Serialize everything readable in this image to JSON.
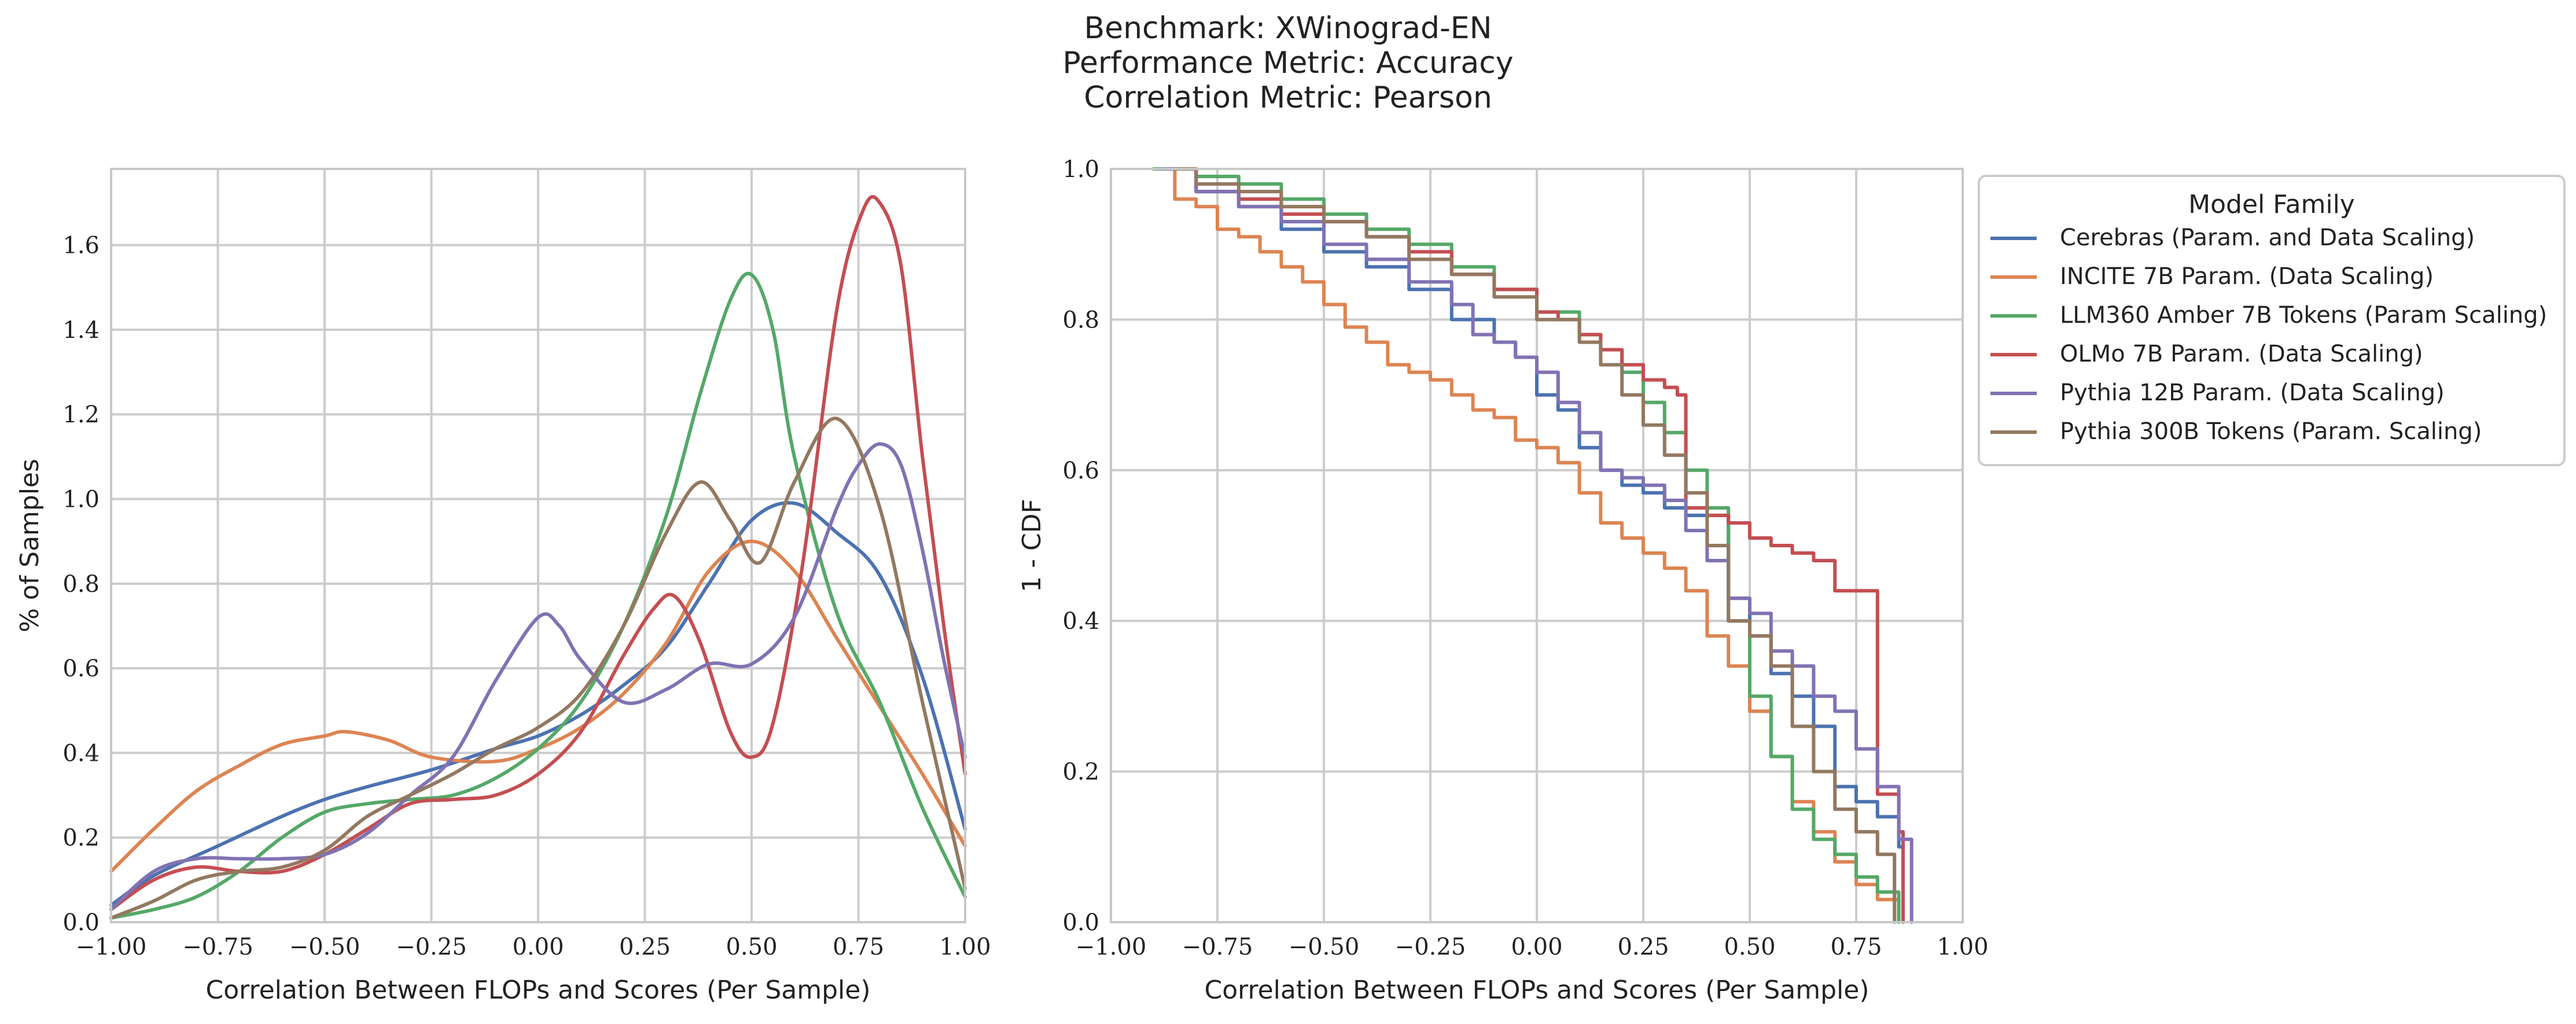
{
  "title": {
    "line1": "Benchmark: XWinograd-EN",
    "line2": "Performance Metric: Accuracy",
    "line3": "Correlation Metric: Pearson"
  },
  "colors": {
    "Cerebras": "#4c72b0",
    "INCITE": "#dd8452",
    "LLM360": "#55a868",
    "OLMo": "#c44e52",
    "Pythia12B": "#8172b3",
    "Pythia300B": "#937860"
  },
  "legend": {
    "title": "Model Family",
    "entries": [
      "Cerebras (Param. and Data Scaling)",
      "INCITE 7B Param. (Data Scaling)",
      "LLM360 Amber 7B Tokens (Param Scaling)",
      "OLMo 7B Param. (Data Scaling)",
      "Pythia 12B Param. (Data Scaling)",
      "Pythia 300B Tokens (Param. Scaling)"
    ]
  },
  "chart_data": [
    {
      "type": "line",
      "xlabel": "Correlation Between FLOPs and Scores (Per Sample)",
      "ylabel": "% of Samples",
      "xlim": [
        -1.0,
        1.0
      ],
      "ylim": [
        0.0,
        1.78
      ],
      "xticks": [
        "−1.00",
        "−0.75",
        "−0.50",
        "−0.25",
        "0.00",
        "0.25",
        "0.50",
        "0.75",
        "1.00"
      ],
      "yticks": [
        "0.0",
        "0.2",
        "0.4",
        "0.6",
        "0.8",
        "1.0",
        "1.2",
        "1.4",
        "1.6"
      ],
      "grid": true,
      "series": [
        {
          "name": "Cerebras (Param. and Data Scaling)",
          "color_key": "Cerebras",
          "x": [
            -1.0,
            -0.9,
            -0.75,
            -0.6,
            -0.5,
            -0.4,
            -0.25,
            -0.1,
            0.0,
            0.1,
            0.2,
            0.3,
            0.4,
            0.5,
            0.6,
            0.7,
            0.8,
            0.9,
            1.0
          ],
          "y": [
            0.04,
            0.11,
            0.18,
            0.25,
            0.29,
            0.32,
            0.36,
            0.41,
            0.44,
            0.49,
            0.56,
            0.65,
            0.8,
            0.95,
            0.99,
            0.92,
            0.82,
            0.58,
            0.22
          ]
        },
        {
          "name": "INCITE 7B Param. (Data Scaling)",
          "color_key": "INCITE",
          "x": [
            -1.0,
            -0.9,
            -0.8,
            -0.7,
            -0.6,
            -0.5,
            -0.45,
            -0.35,
            -0.25,
            -0.1,
            0.0,
            0.1,
            0.2,
            0.3,
            0.4,
            0.5,
            0.6,
            0.7,
            0.8,
            0.9,
            1.0
          ],
          "y": [
            0.12,
            0.22,
            0.31,
            0.37,
            0.42,
            0.44,
            0.45,
            0.43,
            0.39,
            0.38,
            0.41,
            0.46,
            0.54,
            0.66,
            0.83,
            0.9,
            0.83,
            0.67,
            0.51,
            0.35,
            0.18
          ]
        },
        {
          "name": "LLM360 Amber 7B Tokens (Param Scaling)",
          "color_key": "LLM360",
          "x": [
            -1.0,
            -0.9,
            -0.8,
            -0.7,
            -0.6,
            -0.5,
            -0.4,
            -0.3,
            -0.2,
            -0.1,
            0.0,
            0.1,
            0.2,
            0.3,
            0.38,
            0.45,
            0.5,
            0.55,
            0.6,
            0.7,
            0.8,
            0.9,
            1.0
          ],
          "y": [
            0.01,
            0.03,
            0.06,
            0.12,
            0.2,
            0.26,
            0.28,
            0.29,
            0.3,
            0.34,
            0.41,
            0.52,
            0.7,
            0.96,
            1.25,
            1.47,
            1.53,
            1.4,
            1.1,
            0.73,
            0.52,
            0.27,
            0.06
          ]
        },
        {
          "name": "OLMo 7B Param. (Data Scaling)",
          "color_key": "OLMo",
          "x": [
            -1.0,
            -0.9,
            -0.8,
            -0.7,
            -0.6,
            -0.5,
            -0.4,
            -0.3,
            -0.2,
            -0.1,
            0.0,
            0.1,
            0.2,
            0.27,
            0.32,
            0.38,
            0.45,
            0.5,
            0.55,
            0.62,
            0.7,
            0.76,
            0.8,
            0.85,
            0.9,
            0.95,
            1.0
          ],
          "y": [
            0.03,
            0.1,
            0.13,
            0.12,
            0.12,
            0.16,
            0.22,
            0.28,
            0.29,
            0.3,
            0.35,
            0.45,
            0.63,
            0.74,
            0.77,
            0.66,
            0.45,
            0.39,
            0.47,
            0.85,
            1.45,
            1.68,
            1.7,
            1.55,
            1.1,
            0.7,
            0.35
          ]
        },
        {
          "name": "Pythia 12B Param. (Data Scaling)",
          "color_key": "Pythia12B",
          "x": [
            -1.0,
            -0.9,
            -0.8,
            -0.7,
            -0.6,
            -0.5,
            -0.4,
            -0.3,
            -0.2,
            -0.1,
            0.0,
            0.05,
            0.1,
            0.2,
            0.3,
            0.4,
            0.5,
            0.6,
            0.7,
            0.75,
            0.8,
            0.85,
            0.9,
            0.95,
            1.0
          ],
          "y": [
            0.03,
            0.12,
            0.15,
            0.15,
            0.15,
            0.16,
            0.21,
            0.3,
            0.39,
            0.57,
            0.72,
            0.7,
            0.62,
            0.52,
            0.55,
            0.61,
            0.61,
            0.72,
            0.98,
            1.08,
            1.13,
            1.08,
            0.88,
            0.62,
            0.39
          ]
        },
        {
          "name": "Pythia 300B Tokens (Param. Scaling)",
          "color_key": "Pythia300B",
          "x": [
            -1.0,
            -0.9,
            -0.8,
            -0.7,
            -0.6,
            -0.5,
            -0.4,
            -0.3,
            -0.2,
            -0.1,
            0.0,
            0.1,
            0.2,
            0.3,
            0.38,
            0.45,
            0.52,
            0.6,
            0.7,
            0.8,
            0.9,
            1.0
          ],
          "y": [
            0.01,
            0.05,
            0.1,
            0.12,
            0.13,
            0.17,
            0.25,
            0.3,
            0.35,
            0.41,
            0.46,
            0.54,
            0.7,
            0.92,
            1.04,
            0.95,
            0.85,
            1.04,
            1.19,
            0.98,
            0.52,
            0.08
          ]
        }
      ]
    },
    {
      "type": "line",
      "xlabel": "Correlation Between FLOPs and Scores (Per Sample)",
      "ylabel": "1 - CDF",
      "xlim": [
        -1.0,
        1.0
      ],
      "ylim": [
        0.0,
        1.0
      ],
      "xticks": [
        "−1.00",
        "−0.75",
        "−0.50",
        "−0.25",
        "0.00",
        "0.25",
        "0.50",
        "0.75",
        "1.00"
      ],
      "yticks": [
        "0.0",
        "0.2",
        "0.4",
        "0.6",
        "0.8",
        "1.0"
      ],
      "grid": true,
      "legend_position": "outside upper right",
      "step": true,
      "series": [
        {
          "name": "Cerebras (Param. and Data Scaling)",
          "color_key": "Cerebras",
          "x": [
            -0.88,
            -0.8,
            -0.7,
            -0.6,
            -0.5,
            -0.4,
            -0.3,
            -0.25,
            -0.2,
            -0.1,
            -0.05,
            0.0,
            0.05,
            0.1,
            0.15,
            0.2,
            0.25,
            0.3,
            0.35,
            0.4,
            0.45,
            0.5,
            0.55,
            0.6,
            0.65,
            0.7,
            0.75,
            0.8,
            0.85,
            0.86
          ],
          "y": [
            1.0,
            0.97,
            0.95,
            0.92,
            0.89,
            0.87,
            0.84,
            0.84,
            0.8,
            0.77,
            0.75,
            0.7,
            0.68,
            0.63,
            0.6,
            0.58,
            0.57,
            0.55,
            0.54,
            0.54,
            0.43,
            0.38,
            0.33,
            0.3,
            0.26,
            0.18,
            0.16,
            0.14,
            0.1,
            0.0
          ]
        },
        {
          "name": "INCITE 7B Param. (Data Scaling)",
          "color_key": "INCITE",
          "x": [
            -0.9,
            -0.85,
            -0.8,
            -0.75,
            -0.7,
            -0.65,
            -0.6,
            -0.55,
            -0.5,
            -0.45,
            -0.4,
            -0.35,
            -0.3,
            -0.25,
            -0.2,
            -0.15,
            -0.1,
            -0.05,
            0.0,
            0.05,
            0.1,
            0.15,
            0.2,
            0.25,
            0.3,
            0.35,
            0.4,
            0.45,
            0.5,
            0.55,
            0.6,
            0.65,
            0.7,
            0.75,
            0.8,
            0.85
          ],
          "y": [
            1.0,
            0.96,
            0.95,
            0.92,
            0.91,
            0.89,
            0.87,
            0.85,
            0.82,
            0.79,
            0.77,
            0.74,
            0.73,
            0.72,
            0.7,
            0.68,
            0.67,
            0.64,
            0.63,
            0.61,
            0.57,
            0.53,
            0.51,
            0.49,
            0.47,
            0.44,
            0.38,
            0.34,
            0.28,
            0.22,
            0.16,
            0.12,
            0.08,
            0.05,
            0.03,
            0.0
          ]
        },
        {
          "name": "LLM360 Amber 7B Tokens (Param Scaling)",
          "color_key": "LLM360",
          "x": [
            -0.9,
            -0.8,
            -0.7,
            -0.6,
            -0.5,
            -0.4,
            -0.3,
            -0.2,
            -0.1,
            0.0,
            0.1,
            0.15,
            0.2,
            0.25,
            0.3,
            0.35,
            0.4,
            0.45,
            0.5,
            0.55,
            0.6,
            0.65,
            0.7,
            0.75,
            0.8,
            0.85
          ],
          "y": [
            1.0,
            0.99,
            0.98,
            0.96,
            0.94,
            0.92,
            0.9,
            0.87,
            0.84,
            0.81,
            0.78,
            0.76,
            0.73,
            0.69,
            0.65,
            0.6,
            0.55,
            0.4,
            0.3,
            0.22,
            0.15,
            0.11,
            0.09,
            0.06,
            0.04,
            0.0
          ]
        },
        {
          "name": "OLMo 7B Param. (Data Scaling)",
          "color_key": "OLMo",
          "x": [
            -0.85,
            -0.8,
            -0.7,
            -0.6,
            -0.5,
            -0.4,
            -0.3,
            -0.2,
            -0.1,
            0.0,
            0.05,
            0.1,
            0.15,
            0.2,
            0.25,
            0.3,
            0.33,
            0.35,
            0.4,
            0.45,
            0.5,
            0.55,
            0.6,
            0.65,
            0.7,
            0.75,
            0.8,
            0.85,
            0.86
          ],
          "y": [
            1.0,
            0.97,
            0.96,
            0.94,
            0.93,
            0.91,
            0.89,
            0.86,
            0.84,
            0.81,
            0.8,
            0.78,
            0.76,
            0.74,
            0.72,
            0.71,
            0.7,
            0.55,
            0.54,
            0.53,
            0.51,
            0.5,
            0.49,
            0.48,
            0.44,
            0.44,
            0.17,
            0.12,
            0.0
          ]
        },
        {
          "name": "Pythia 12B Param. (Data Scaling)",
          "color_key": "Pythia12B",
          "x": [
            -0.88,
            -0.8,
            -0.7,
            -0.6,
            -0.5,
            -0.4,
            -0.3,
            -0.2,
            -0.15,
            -0.1,
            -0.05,
            0.0,
            0.05,
            0.1,
            0.15,
            0.2,
            0.25,
            0.3,
            0.35,
            0.4,
            0.45,
            0.5,
            0.55,
            0.6,
            0.65,
            0.7,
            0.75,
            0.8,
            0.85,
            0.88
          ],
          "y": [
            1.0,
            0.97,
            0.95,
            0.93,
            0.9,
            0.88,
            0.85,
            0.82,
            0.78,
            0.77,
            0.75,
            0.73,
            0.69,
            0.65,
            0.6,
            0.59,
            0.58,
            0.56,
            0.52,
            0.48,
            0.43,
            0.41,
            0.36,
            0.34,
            0.3,
            0.28,
            0.23,
            0.18,
            0.11,
            0.0
          ]
        },
        {
          "name": "Pythia 300B Tokens (Param. Scaling)",
          "color_key": "Pythia300B",
          "x": [
            -0.85,
            -0.8,
            -0.7,
            -0.6,
            -0.5,
            -0.4,
            -0.3,
            -0.2,
            -0.1,
            0.0,
            0.1,
            0.15,
            0.2,
            0.25,
            0.3,
            0.35,
            0.4,
            0.45,
            0.5,
            0.55,
            0.6,
            0.65,
            0.7,
            0.75,
            0.8,
            0.84
          ],
          "y": [
            1.0,
            0.98,
            0.97,
            0.95,
            0.93,
            0.91,
            0.88,
            0.86,
            0.83,
            0.8,
            0.77,
            0.74,
            0.7,
            0.66,
            0.62,
            0.57,
            0.5,
            0.4,
            0.38,
            0.34,
            0.26,
            0.2,
            0.15,
            0.12,
            0.09,
            0.0
          ]
        }
      ]
    }
  ]
}
